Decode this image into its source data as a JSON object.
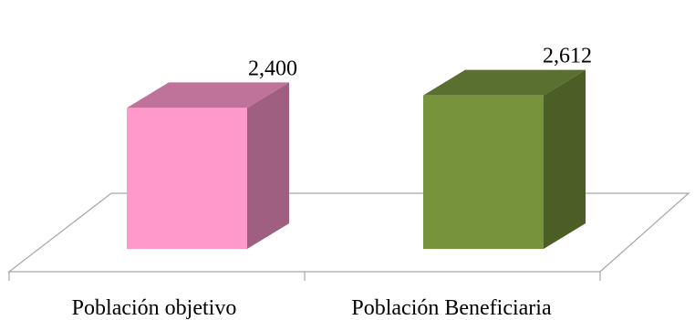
{
  "chart_data": {
    "type": "bar",
    "three_d": true,
    "categories": [
      "Población objetivo",
      "Población Beneficiaria"
    ],
    "values": [
      2400,
      2612
    ],
    "data_labels": [
      "2,400",
      "2,612"
    ],
    "colors": [
      {
        "front": "#ff99cc",
        "top": "#c0739a",
        "side": "#9e5f80"
      },
      {
        "front": "#77933c",
        "top": "#5a7030",
        "side": "#4a5e25"
      }
    ],
    "ylim": [
      0,
      2700
    ],
    "grid": false,
    "legend": "none"
  }
}
